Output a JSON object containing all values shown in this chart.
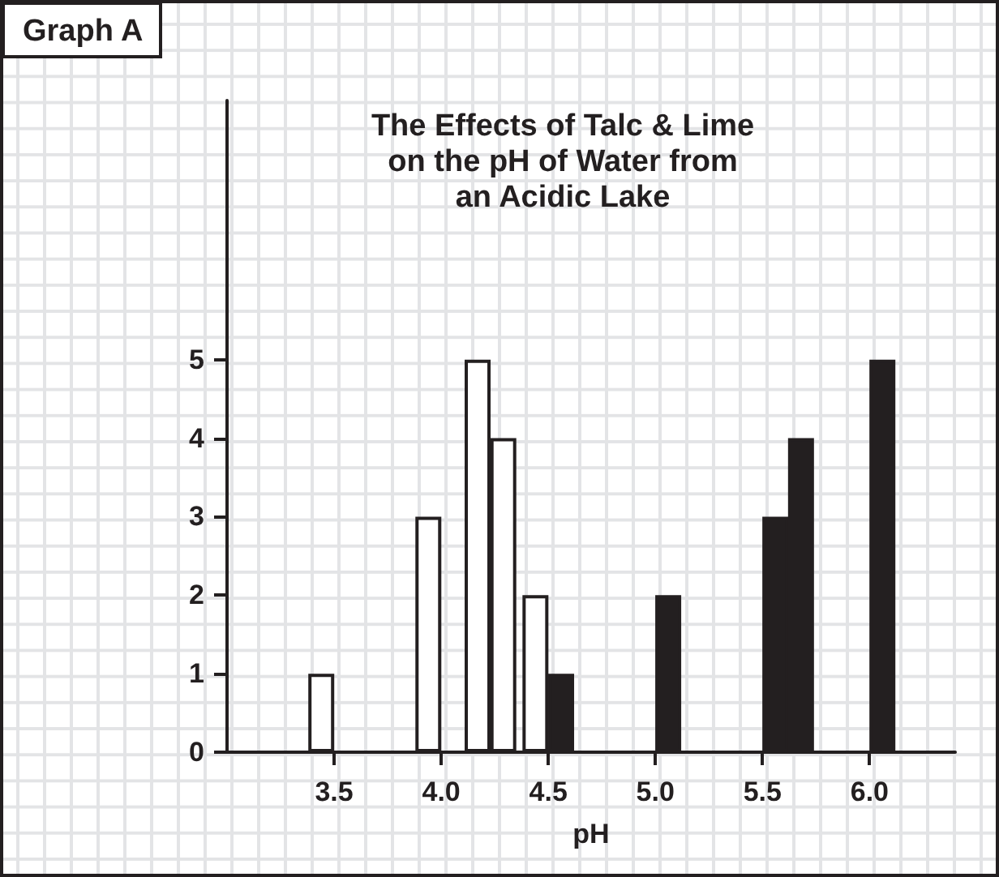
{
  "chart_data": {
    "type": "bar",
    "title": "Graph A",
    "subtitle": "The Effects of Talc & Lime\non the pH of Water from\nan Acidic Lake",
    "xlabel": "pH",
    "series": [
      {
        "color": "#ffffff",
        "x": [
          3.44,
          3.94,
          4.17,
          4.29,
          4.44
        ],
        "values": [
          1,
          3,
          5,
          4,
          2
        ]
      },
      {
        "color": "#231f20",
        "x": [
          4.56,
          5.06,
          5.56,
          5.68,
          6.06
        ],
        "values": [
          1,
          2,
          3,
          4,
          5
        ]
      }
    ],
    "xlim": [
      3.0,
      6.4
    ],
    "xticks": [
      {
        "value": 3.5,
        "label": "3.5"
      },
      {
        "value": 4.0,
        "label": "4.0"
      },
      {
        "value": 4.5,
        "label": "4.5"
      },
      {
        "value": 5.0,
        "label": "5.0"
      },
      {
        "value": 5.5,
        "label": "5.5"
      },
      {
        "value": 6.0,
        "label": "6.0"
      }
    ],
    "ylim": [
      0,
      8.3
    ],
    "yticks": [
      0,
      1,
      2,
      3,
      4,
      5
    ]
  }
}
